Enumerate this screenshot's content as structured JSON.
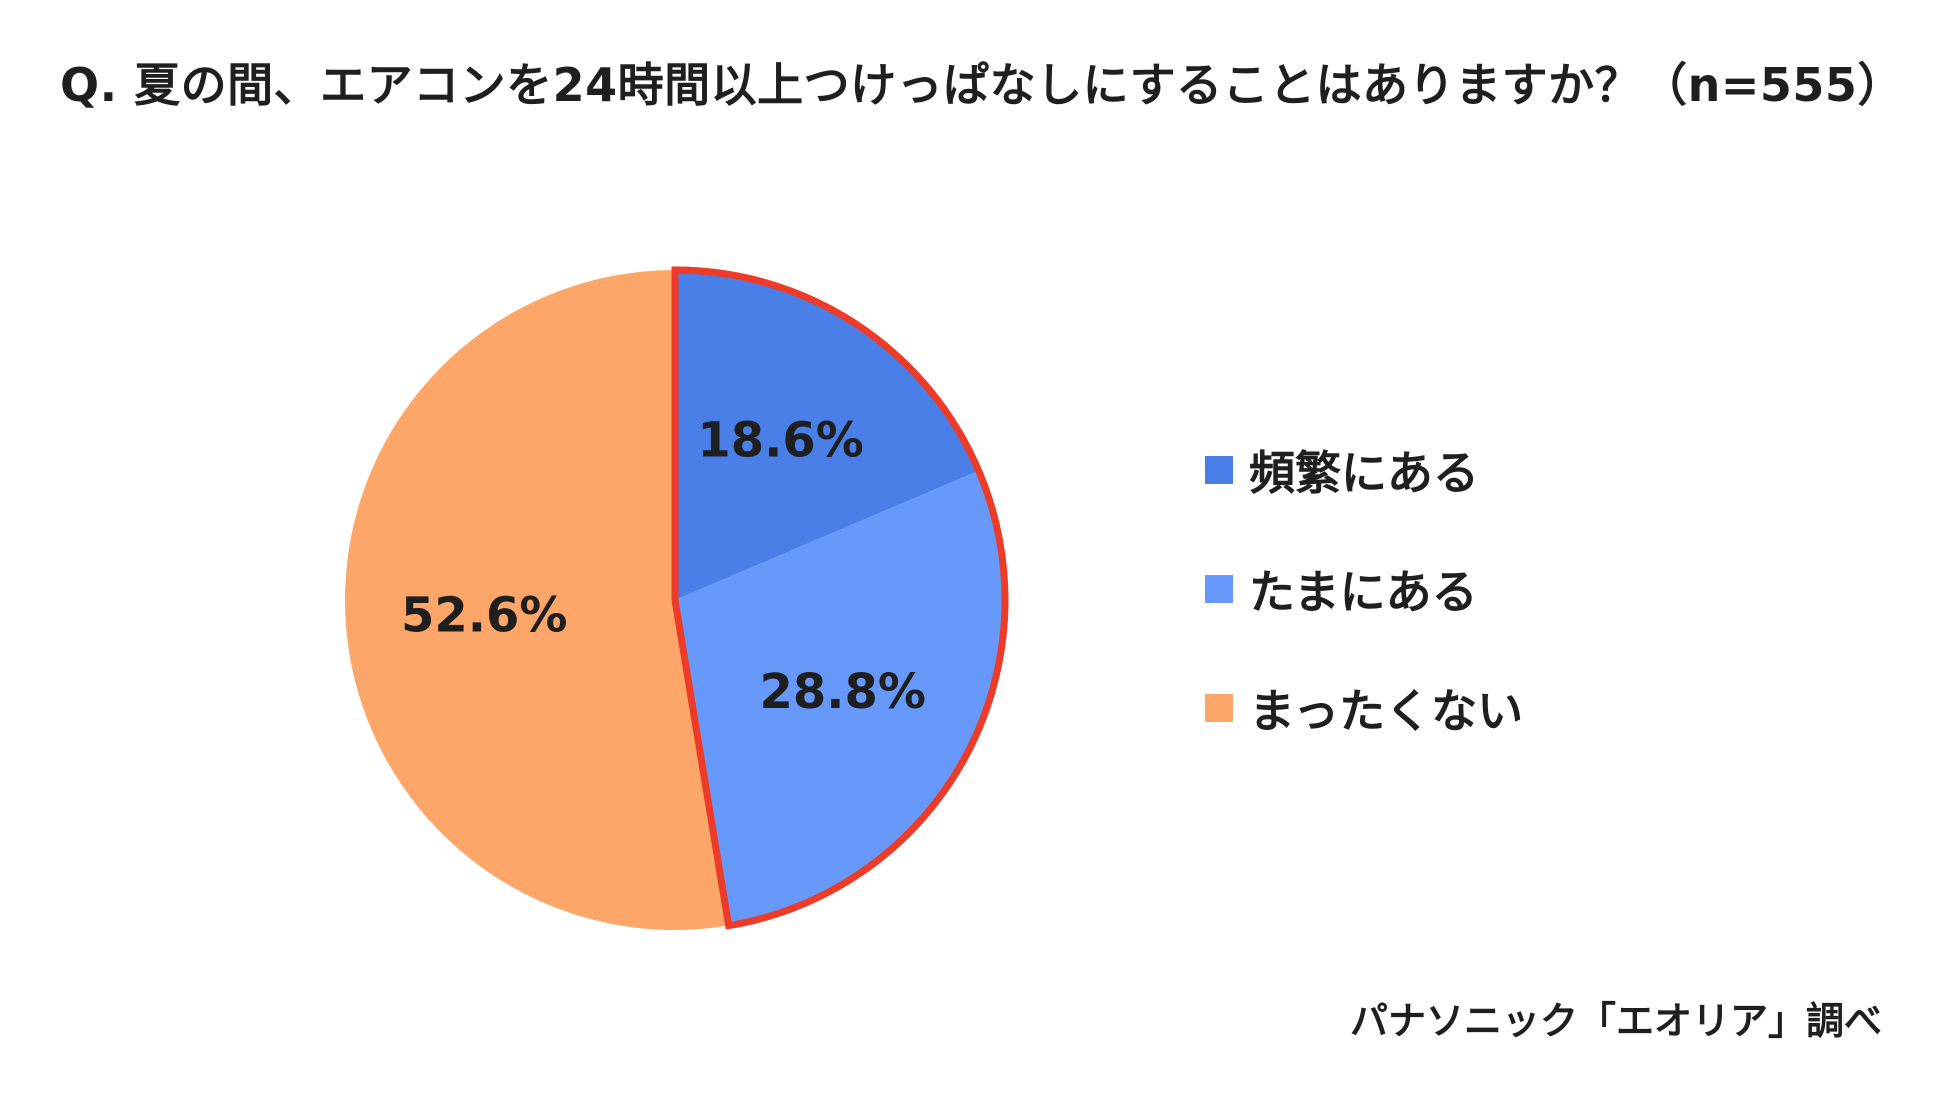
{
  "chart_data": {
    "type": "pie",
    "title": "Q. 夏の間、エアコンを24時間以上つけっぱなしにすることはありますか？（n=555）",
    "slices": [
      {
        "label": "頻繁にある",
        "value": 18.6,
        "value_label": "18.6%",
        "color": "#4A7FE8"
      },
      {
        "label": "たまにある",
        "value": 28.8,
        "value_label": "28.8%",
        "color": "#6699FA"
      },
      {
        "label": "まったくない",
        "value": 52.6,
        "value_label": "52.6%",
        "color": "#FCA66A"
      }
    ],
    "highlight_color": "#EE3B28",
    "highlighted_slices": [
      "頻繁にある",
      "たまにある"
    ],
    "legend_position": "right",
    "source": "パナソニック「エオリア」調べ"
  }
}
